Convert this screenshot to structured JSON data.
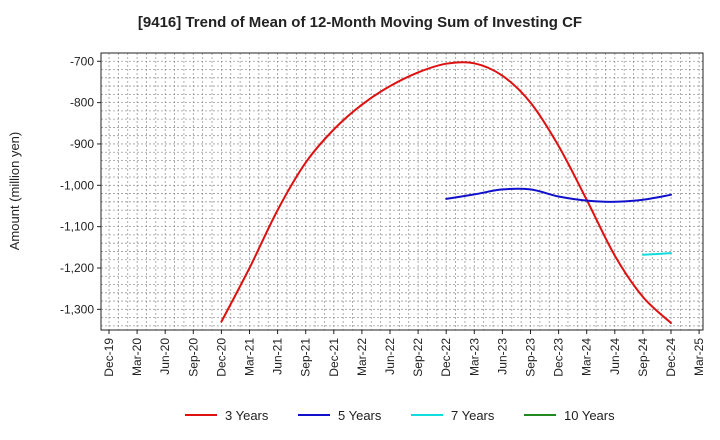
{
  "chart_data": {
    "type": "line",
    "title": "[9416]  Trend of Mean of 12-Month Moving Sum of Investing CF",
    "ylabel": "Amount (million yen)",
    "xlabel": "",
    "ylim": [
      -1350,
      -680
    ],
    "yticks": [
      -700,
      -800,
      -900,
      -1000,
      -1100,
      -1200,
      -1300
    ],
    "ytick_labels": [
      "-700",
      "-800",
      "-900",
      "-1,000",
      "-1,100",
      "-1,200",
      "-1,300"
    ],
    "categories": [
      "Dec-19",
      "Mar-20",
      "Jun-20",
      "Sep-20",
      "Dec-20",
      "Mar-21",
      "Jun-21",
      "Sep-21",
      "Dec-21",
      "Mar-22",
      "Jun-22",
      "Sep-22",
      "Dec-22",
      "Mar-23",
      "Jun-23",
      "Sep-23",
      "Dec-23",
      "Mar-24",
      "Jun-24",
      "Sep-24",
      "Dec-24",
      "Mar-25"
    ],
    "grid": true,
    "legend_position": "bottom",
    "series": [
      {
        "name": "3 Years",
        "color": "#dd1111",
        "points": [
          [
            "Dec-20",
            -1330
          ],
          [
            "Mar-21",
            -1200
          ],
          [
            "Jun-21",
            -1060
          ],
          [
            "Sep-21",
            -945
          ],
          [
            "Dec-21",
            -865
          ],
          [
            "Mar-22",
            -805
          ],
          [
            "Jun-22",
            -760
          ],
          [
            "Sep-22",
            -727
          ],
          [
            "Dec-22",
            -706
          ],
          [
            "Mar-23",
            -705
          ],
          [
            "Jun-23",
            -735
          ],
          [
            "Sep-23",
            -800
          ],
          [
            "Dec-23",
            -905
          ],
          [
            "Mar-24",
            -1035
          ],
          [
            "Jun-24",
            -1170
          ],
          [
            "Sep-24",
            -1270
          ],
          [
            "Dec-24",
            -1333
          ]
        ]
      },
      {
        "name": "5 Years",
        "color": "#1111cc",
        "points": [
          [
            "Dec-22",
            -1033
          ],
          [
            "Mar-23",
            -1022
          ],
          [
            "Jun-23",
            -1010
          ],
          [
            "Sep-23",
            -1010
          ],
          [
            "Dec-23",
            -1027
          ],
          [
            "Mar-24",
            -1037
          ],
          [
            "Jun-24",
            -1040
          ],
          [
            "Sep-24",
            -1035
          ],
          [
            "Dec-24",
            -1023
          ]
        ]
      },
      {
        "name": "7 Years",
        "color": "#11dddd",
        "points": [
          [
            "Sep-24",
            -1168
          ],
          [
            "Dec-24",
            -1164
          ]
        ]
      },
      {
        "name": "10 Years",
        "color": "#228822",
        "points": []
      }
    ]
  }
}
